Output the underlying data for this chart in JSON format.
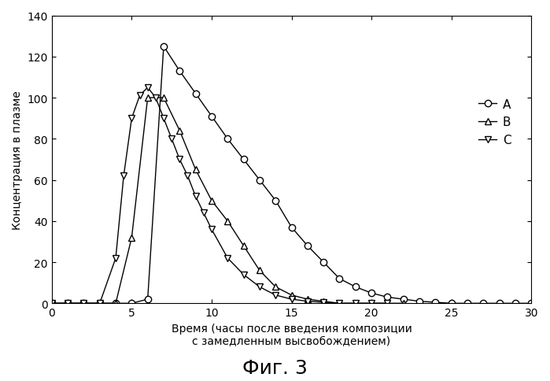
{
  "title": "Фиг. 3",
  "ylabel": "Концентрация в плазме",
  "xlabel": "Время (часы после введения композиции\nс замедленным высвобождением)",
  "xlim": [
    0,
    30
  ],
  "ylim": [
    0,
    140
  ],
  "xticks": [
    0,
    5,
    10,
    15,
    20,
    25,
    30
  ],
  "yticks": [
    0,
    20,
    40,
    60,
    80,
    100,
    120,
    140
  ],
  "series_A": {
    "x": [
      0,
      1,
      2,
      3,
      4,
      5,
      6,
      7,
      8,
      9,
      10,
      11,
      12,
      13,
      14,
      15,
      16,
      17,
      18,
      19,
      20,
      21,
      22,
      23,
      24,
      25,
      26,
      27,
      28,
      29,
      30
    ],
    "y": [
      0,
      0,
      0,
      0,
      0,
      0,
      2,
      125,
      113,
      102,
      91,
      80,
      70,
      60,
      50,
      37,
      28,
      20,
      12,
      8,
      5,
      3,
      2,
      1,
      0.5,
      0,
      0,
      0,
      0,
      0,
      0
    ],
    "label": "A",
    "marker": "o",
    "markersize": 6
  },
  "series_B": {
    "x": [
      0,
      1,
      2,
      3,
      4,
      5,
      6,
      7,
      8,
      9,
      10,
      11,
      12,
      13,
      14,
      15,
      16,
      17,
      18,
      19,
      20,
      21,
      22
    ],
    "y": [
      0,
      0,
      0,
      0,
      0,
      32,
      100,
      100,
      84,
      65,
      50,
      40,
      28,
      16,
      8,
      4,
      2,
      1,
      0,
      0,
      0,
      0,
      0
    ],
    "label": "B",
    "marker": "^",
    "markersize": 6
  },
  "series_C": {
    "x": [
      0,
      1,
      2,
      3,
      4,
      4.5,
      5,
      5.5,
      6,
      6.5,
      7,
      7.5,
      8,
      8.5,
      9,
      9.5,
      10,
      11,
      12,
      13,
      14,
      15,
      16,
      17,
      18,
      19,
      20,
      21
    ],
    "y": [
      0,
      0,
      0,
      0,
      22,
      62,
      90,
      101,
      105,
      100,
      90,
      80,
      70,
      62,
      52,
      44,
      36,
      22,
      14,
      8,
      4,
      2,
      1,
      0.5,
      0,
      0,
      0,
      0
    ],
    "label": "C",
    "marker": "v",
    "markersize": 6
  },
  "color": "black",
  "fig_width": 6.99,
  "fig_height": 4.85,
  "dpi": 100
}
